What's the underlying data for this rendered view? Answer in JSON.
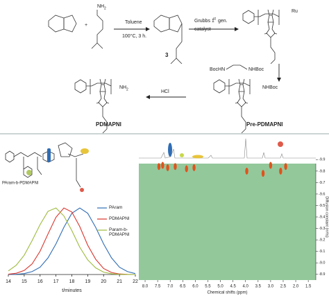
{
  "scheme": {
    "reagent_solvent": "Toluene",
    "reagent_conditions": "100°C, 3 h.",
    "grubbs_a": "Grubbs 1",
    "grubbs_sup": "st",
    "grubbs_b": "gen.",
    "grubbs_c": "catalyst",
    "amine_nh": "NH",
    "amine_sub": "2",
    "compound_number": "3",
    "ru": "Ru",
    "boc_left": "BocHN",
    "boc_right": "NHBoc",
    "pre_end": "NHBoc",
    "final_nh": "NH",
    "final_sub": "2",
    "acid": "HCl",
    "product": "PDMAPNI",
    "precursor": "Pre-PDMAPNI",
    "block_label": "PAram-b-PDMAPNI"
  },
  "chart_data": [
    {
      "type": "line",
      "xlabel": "t/minutes",
      "x": [
        14,
        14.5,
        15,
        15.5,
        16,
        16.5,
        17,
        17.5,
        18,
        18.5,
        19,
        19.5,
        20,
        20.5,
        21,
        21.5,
        22
      ],
      "xlim": [
        14,
        22
      ],
      "xticks": [
        14,
        15,
        16,
        17,
        18,
        19,
        20,
        21,
        22
      ],
      "ylim": [
        0,
        1
      ],
      "series": [
        {
          "name": "PAram",
          "color": "#2f6db5",
          "values": [
            0.001,
            0.004,
            0.014,
            0.044,
            0.11,
            0.25,
            0.46,
            0.71,
            0.92,
            1,
            0.92,
            0.71,
            0.46,
            0.25,
            0.11,
            0.044,
            0.014
          ]
        },
        {
          "name": "PDMAPNI",
          "color": "#d9342b",
          "values": [
            0.005,
            0.019,
            0.061,
            0.16,
            0.35,
            0.61,
            0.86,
            1,
            0.94,
            0.72,
            0.44,
            0.23,
            0.09,
            0.03,
            0.008,
            0.002,
            0
          ]
        },
        {
          "name": "Param-b-PDMAPNI",
          "color": "#9dbb3c",
          "values": [
            0.054,
            0.14,
            0.29,
            0.51,
            0.75,
            0.95,
            1,
            0.88,
            0.66,
            0.41,
            0.22,
            0.1,
            0.035,
            0.011,
            0.003,
            0.001,
            0
          ]
        }
      ]
    },
    {
      "type": "scatter",
      "xlabel": "Chemical shifts (ppm)",
      "ylabel": "Diffusion constant (m²/s)",
      "color": "#e0531c",
      "background": "#93c89b",
      "x": [
        7.45,
        7.3,
        7.1,
        6.8,
        6.35,
        6.05,
        3.95,
        3.3,
        3.0,
        2.6,
        2.4
      ],
      "y": [
        -9.84,
        -9.85,
        -9.83,
        -9.84,
        -9.82,
        -9.83,
        -9.8,
        -9.78,
        -9.85,
        -9.8,
        -9.84
      ],
      "xlim": [
        8.25,
        1.2
      ],
      "xticks": [
        {
          "value": 8,
          "label": "8.0"
        },
        7.5,
        {
          "value": 7,
          "label": "7.0"
        },
        6.5,
        {
          "value": 6,
          "label": "6.0"
        },
        5.5,
        {
          "value": 5,
          "label": "5.0"
        },
        4.5,
        {
          "value": 4,
          "label": "4.0"
        },
        3.5,
        {
          "value": 3,
          "label": "3.0"
        },
        2.5,
        {
          "value": 2,
          "label": "2.0"
        },
        1.5
      ],
      "ylim": [
        -8.85,
        -9.95
      ],
      "yticks": [
        -9.9,
        -9.8,
        -9.7,
        -9.6,
        -9.5,
        -9.4,
        -9.3,
        -9.2,
        -9.1,
        {
          "value": -9,
          "label": "-9.0"
        },
        -8.9
      ]
    }
  ]
}
